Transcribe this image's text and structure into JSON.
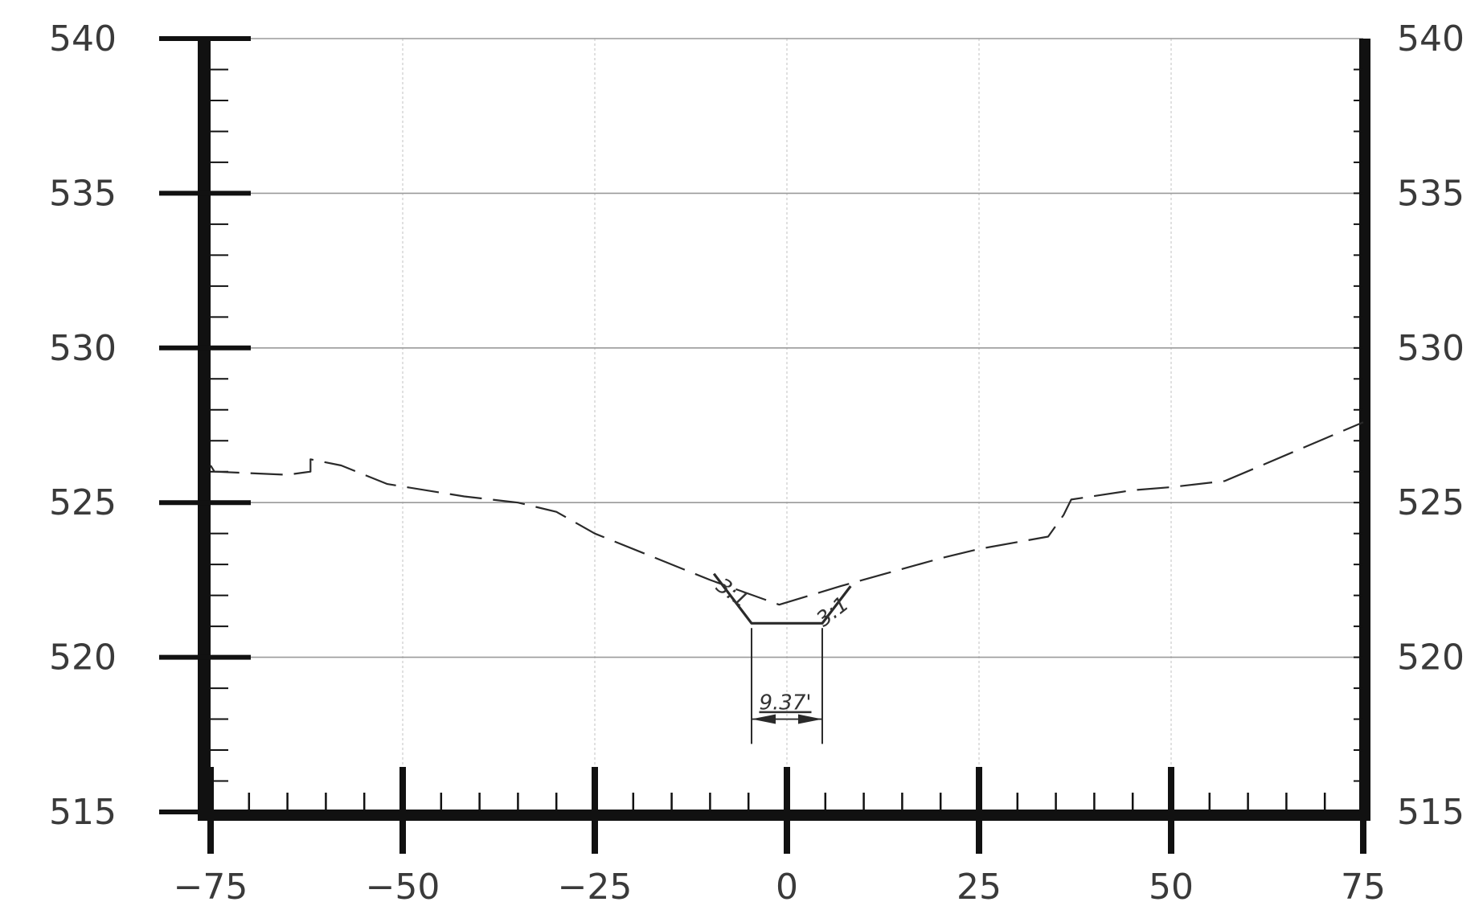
{
  "chart_data": {
    "type": "line",
    "title": "",
    "xlabel": "",
    "ylabel": "",
    "xlim": [
      -75,
      75
    ],
    "ylim": [
      515,
      540
    ],
    "x_ticks": [
      "-75",
      "-50",
      "-25",
      "0",
      "25",
      "50",
      "75"
    ],
    "x_tick_values": [
      -75,
      -50,
      -25,
      0,
      25,
      50,
      75
    ],
    "y_ticks_left": [
      "540",
      "535",
      "530",
      "525",
      "520",
      "515"
    ],
    "y_ticks_right": [
      "540",
      "535",
      "530",
      "525",
      "520",
      "515"
    ],
    "y_tick_values": [
      540,
      535,
      530,
      525,
      520,
      515
    ],
    "grid": true,
    "series": [
      {
        "style": "dashed",
        "x": [
          -75,
          -74.5,
          -65,
          -62,
          -62,
          -58,
          -52,
          -42,
          -35,
          -30,
          -25,
          -10,
          -1,
          7,
          20,
          25,
          34,
          36,
          37,
          45,
          50,
          57,
          75
        ],
        "y": [
          526.2,
          526.0,
          525.9,
          526.0,
          526.4,
          526.2,
          525.6,
          525.2,
          525.0,
          524.7,
          524.0,
          522.5,
          521.7,
          522.3,
          523.2,
          523.5,
          523.9,
          524.6,
          525.1,
          525.4,
          525.5,
          525.7,
          527.6
        ]
      },
      {
        "style": "solid",
        "x": [
          -9.5,
          -4.6,
          4.6,
          8.3
        ],
        "y": [
          522.7,
          521.1,
          521.1,
          522.3
        ]
      }
    ],
    "annotations": {
      "width_label": "9.37'",
      "width_from_x": -4.6,
      "width_to_x": 4.6,
      "left_slope_label": "3:1",
      "right_slope_label": "3:1"
    },
    "colors": {
      "frame": "#111111",
      "grid": "#9a9a9a",
      "minor_grid": "#cccccc",
      "line": "#2a2a2a"
    }
  }
}
